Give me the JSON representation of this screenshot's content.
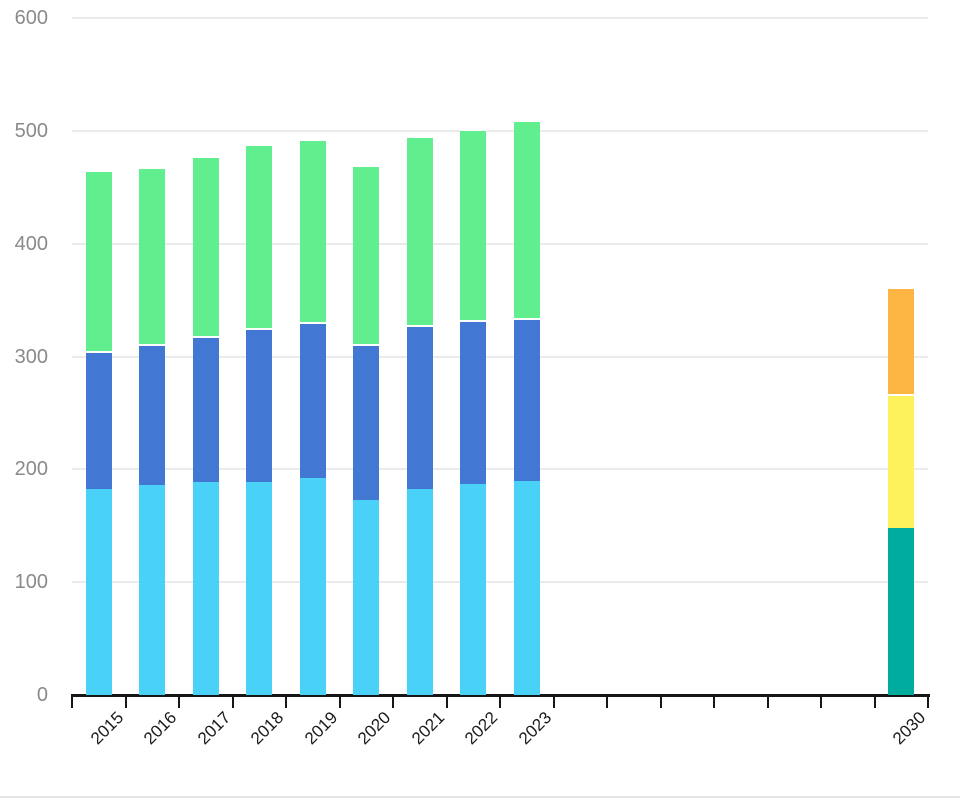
{
  "chart_data": {
    "type": "bar",
    "stacked": true,
    "title": "",
    "xlabel": "",
    "ylabel": "",
    "ylim": [
      0,
      600
    ],
    "yticks": [
      0,
      100,
      200,
      300,
      400,
      500,
      600
    ],
    "grid": true,
    "legend": false,
    "slot_labels": [
      "2015",
      "2016",
      "2017",
      "2018",
      "2019",
      "2020",
      "2021",
      "2022",
      "2023",
      "",
      "",
      "",
      "",
      "",
      "",
      "2030"
    ],
    "bars": [
      {
        "slot": 0,
        "label": "2015",
        "total": 465,
        "segments": [
          {
            "name": "light-blue",
            "value": 183
          },
          {
            "name": "blue",
            "value": 122
          },
          {
            "name": "green",
            "value": 160
          }
        ]
      },
      {
        "slot": 1,
        "label": "2016",
        "total": 468,
        "segments": [
          {
            "name": "light-blue",
            "value": 186
          },
          {
            "name": "blue",
            "value": 125
          },
          {
            "name": "green",
            "value": 157
          }
        ]
      },
      {
        "slot": 2,
        "label": "2017",
        "total": 478,
        "segments": [
          {
            "name": "light-blue",
            "value": 189
          },
          {
            "name": "blue",
            "value": 129
          },
          {
            "name": "green",
            "value": 160
          }
        ]
      },
      {
        "slot": 3,
        "label": "2018",
        "total": 488,
        "segments": [
          {
            "name": "light-blue",
            "value": 189
          },
          {
            "name": "blue",
            "value": 136
          },
          {
            "name": "green",
            "value": 163
          }
        ]
      },
      {
        "slot": 4,
        "label": "2019",
        "total": 493,
        "segments": [
          {
            "name": "light-blue",
            "value": 192
          },
          {
            "name": "blue",
            "value": 139
          },
          {
            "name": "green",
            "value": 162
          }
        ]
      },
      {
        "slot": 5,
        "label": "2020",
        "total": 470,
        "segments": [
          {
            "name": "light-blue",
            "value": 173
          },
          {
            "name": "blue",
            "value": 138
          },
          {
            "name": "green",
            "value": 159
          }
        ]
      },
      {
        "slot": 6,
        "label": "2021",
        "total": 495,
        "segments": [
          {
            "name": "light-blue",
            "value": 183
          },
          {
            "name": "blue",
            "value": 145
          },
          {
            "name": "green",
            "value": 167
          }
        ]
      },
      {
        "slot": 7,
        "label": "2022",
        "total": 502,
        "segments": [
          {
            "name": "light-blue",
            "value": 187
          },
          {
            "name": "blue",
            "value": 145
          },
          {
            "name": "green",
            "value": 170
          }
        ]
      },
      {
        "slot": 8,
        "label": "2023",
        "total": 510,
        "segments": [
          {
            "name": "light-blue",
            "value": 190
          },
          {
            "name": "blue",
            "value": 144
          },
          {
            "name": "green",
            "value": 176
          }
        ]
      },
      {
        "slot": 15,
        "label": "2030",
        "total": 362,
        "segments": [
          {
            "name": "teal",
            "value": 148
          },
          {
            "name": "yellow",
            "value": 119
          },
          {
            "name": "orange",
            "value": 95
          }
        ]
      }
    ],
    "colors": {
      "light-blue": "#49D1F8",
      "blue": "#4278D4",
      "green": "#61EE8F",
      "teal": "#00AC9E",
      "yellow": "#FDF25C",
      "orange": "#FDB544",
      "axis": "#161616",
      "gridline": "#ebebeb",
      "y_tick_label": "#8a8a8a",
      "x_tick_label": "#1a1a1a"
    }
  }
}
